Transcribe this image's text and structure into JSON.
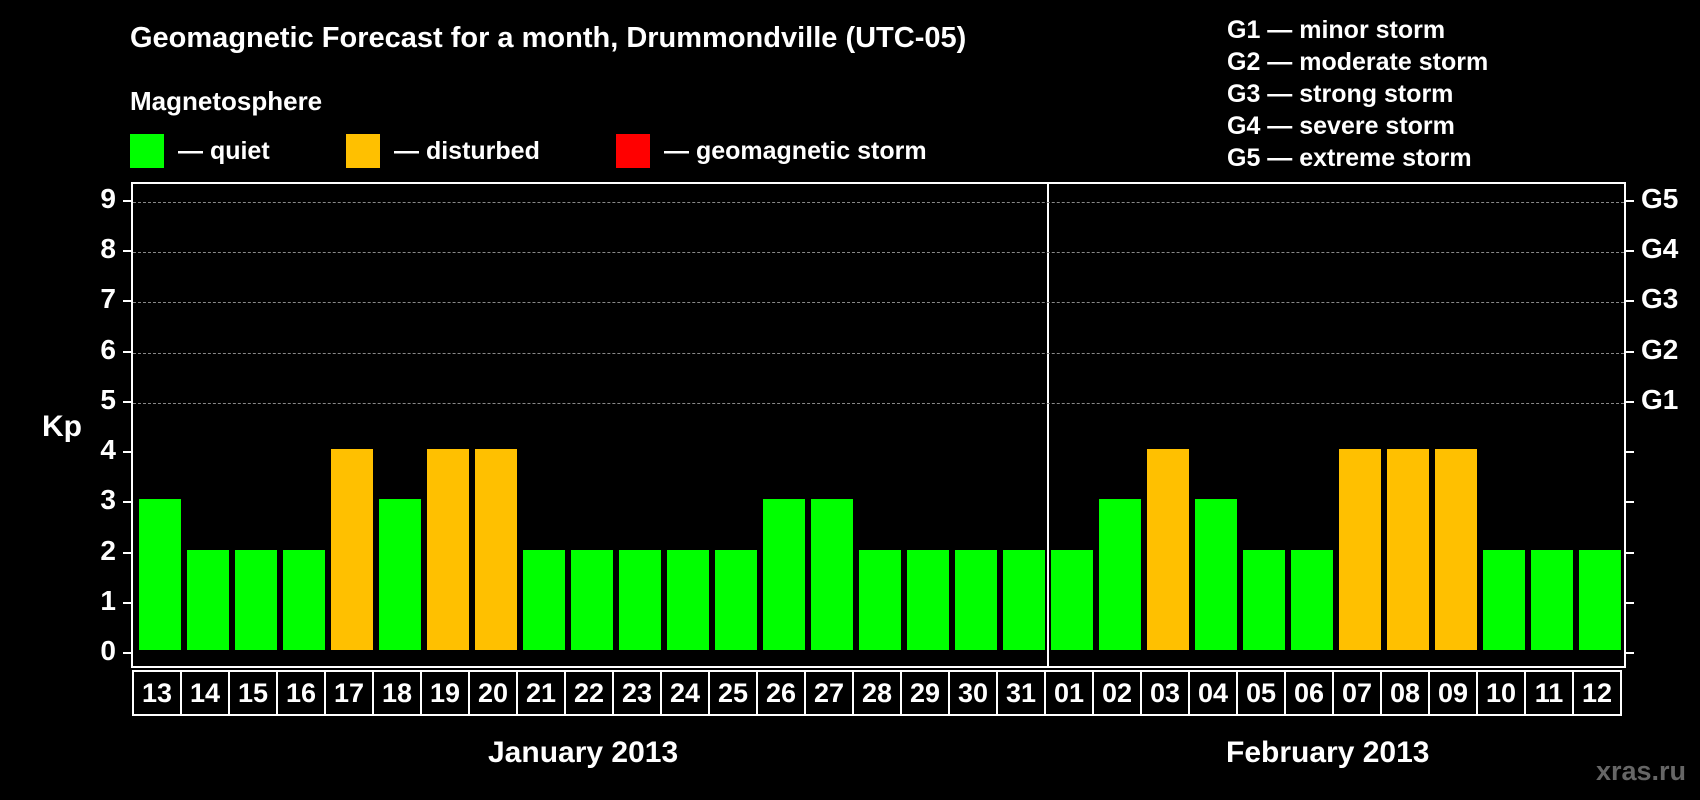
{
  "title": "Geomagnetic Forecast for a month, Drummondville (UTC-05)",
  "subtitle": "Magnetosphere",
  "legend": [
    {
      "label": "— quiet",
      "color": "#00ff00"
    },
    {
      "label": "— disturbed",
      "color": "#ffc000"
    },
    {
      "label": "— geomagnetic storm",
      "color": "#ff0000"
    }
  ],
  "storm_legend": [
    "G1 — minor storm",
    "G2 — moderate storm",
    "G3 — strong storm",
    "G4 — severe storm",
    "G5 — extreme storm"
  ],
  "y_axis_label": "Kp",
  "y_ticks": [
    "0",
    "1",
    "2",
    "3",
    "4",
    "5",
    "6",
    "7",
    "8",
    "9"
  ],
  "g_ticks": [
    {
      "kp": 5,
      "label": "G1"
    },
    {
      "kp": 6,
      "label": "G2"
    },
    {
      "kp": 7,
      "label": "G3"
    },
    {
      "kp": 8,
      "label": "G4"
    },
    {
      "kp": 9,
      "label": "G5"
    }
  ],
  "months": [
    "January 2013",
    "February 2013"
  ],
  "watermark": "xras.ru",
  "chart_data": {
    "type": "bar",
    "title": "Geomagnetic Forecast for a month, Drummondville (UTC-05)",
    "xlabel": "",
    "ylabel": "Kp",
    "ylim": [
      0,
      9
    ],
    "grid": true,
    "categories": [
      "13",
      "14",
      "15",
      "16",
      "17",
      "18",
      "19",
      "20",
      "21",
      "22",
      "23",
      "24",
      "25",
      "26",
      "27",
      "28",
      "29",
      "30",
      "31",
      "01",
      "02",
      "03",
      "04",
      "05",
      "06",
      "07",
      "08",
      "09",
      "10",
      "11",
      "12"
    ],
    "month_groups": [
      {
        "label": "January 2013",
        "days": [
          "13",
          "14",
          "15",
          "16",
          "17",
          "18",
          "19",
          "20",
          "21",
          "22",
          "23",
          "24",
          "25",
          "26",
          "27",
          "28",
          "29",
          "30",
          "31"
        ]
      },
      {
        "label": "February 2013",
        "days": [
          "01",
          "02",
          "03",
          "04",
          "05",
          "06",
          "07",
          "08",
          "09",
          "10",
          "11",
          "12"
        ]
      }
    ],
    "values": [
      3,
      2,
      2,
      2,
      4,
      3,
      4,
      4,
      2,
      2,
      2,
      2,
      2,
      3,
      3,
      2,
      2,
      2,
      2,
      2,
      3,
      4,
      3,
      2,
      2,
      4,
      4,
      4,
      2,
      2,
      2
    ],
    "status": [
      "quiet",
      "quiet",
      "quiet",
      "quiet",
      "disturbed",
      "quiet",
      "disturbed",
      "disturbed",
      "quiet",
      "quiet",
      "quiet",
      "quiet",
      "quiet",
      "quiet",
      "quiet",
      "quiet",
      "quiet",
      "quiet",
      "quiet",
      "quiet",
      "quiet",
      "disturbed",
      "quiet",
      "quiet",
      "quiet",
      "disturbed",
      "disturbed",
      "disturbed",
      "quiet",
      "quiet",
      "quiet"
    ],
    "colors": {
      "quiet": "#00ff00",
      "disturbed": "#ffc000",
      "storm": "#ff0000"
    },
    "secondary_axis": {
      "G1": 5,
      "G2": 6,
      "G3": 7,
      "G4": 8,
      "G5": 9
    }
  }
}
